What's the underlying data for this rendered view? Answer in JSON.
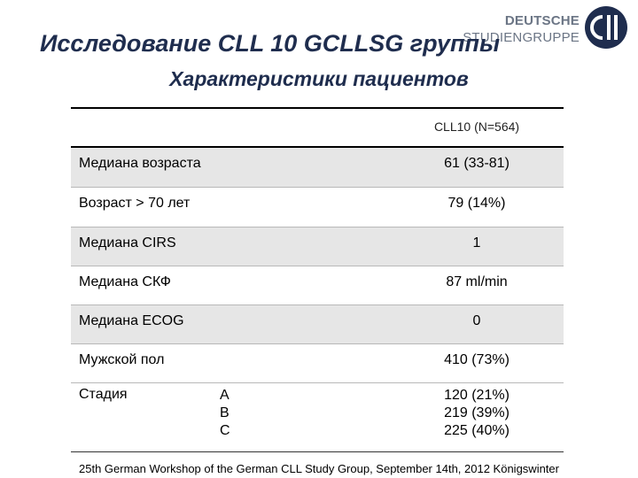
{
  "header": {
    "title": "Исследование CLL 10   GCLLSG группы",
    "subtitle": "Характеристики пациентов"
  },
  "logo": {
    "line1": "DEUTSCHE",
    "line2": "STUDIENGRUPPE",
    "icon": "cll-logo-icon",
    "color": "#1f2d4e"
  },
  "table": {
    "column_header": "CLL10 (N=564)",
    "rows": [
      {
        "label": "Медиана возраста",
        "value": "61 (33-81)"
      },
      {
        "label": "Возраст > 70 лет",
        "value": "79 (14%)"
      },
      {
        "label": "Медиана CIRS",
        "value": "1"
      },
      {
        "label": "Медиана СКФ",
        "value": "87 ml/min"
      },
      {
        "label": "Медиана ECOG",
        "value": "0"
      },
      {
        "label": "Мужской пол",
        "value": "410 (73%)"
      }
    ],
    "stage": {
      "label": "Стадия",
      "items": [
        {
          "letter": "A",
          "value": "120 (21%)"
        },
        {
          "letter": "B",
          "value": "219 (39%)"
        },
        {
          "letter": "C",
          "value": "225 (40%)"
        }
      ]
    }
  },
  "footer": "25th German Workshop of the German CLL Study Group, September  14th, 2012  Königswinter"
}
